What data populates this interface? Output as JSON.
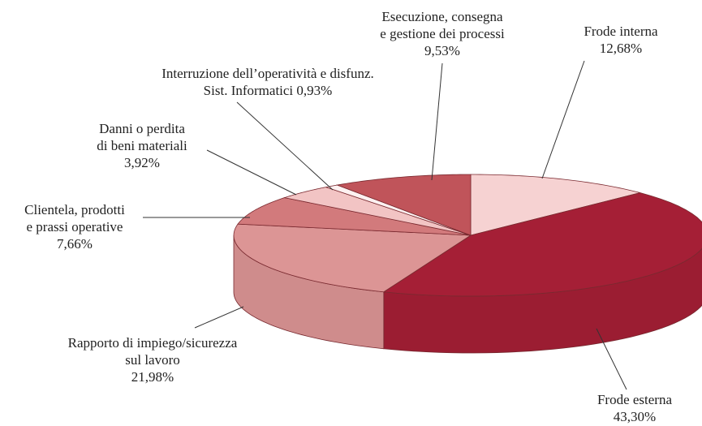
{
  "chart_data": {
    "type": "pie3d",
    "categories": [
      "Frode interna",
      "Frode esterna",
      "Rapporto di impiego/sicurezza\nsul lavoro",
      "Clientela, prodotti\ne prassi operative",
      "Danni o perdita\ndi beni materiali",
      "Interruzione dell’operatività e disfunz.\nSist. Informatici",
      "Esecuzione, consegna\ne gestione dei processi"
    ],
    "values": [
      12.68,
      43.3,
      21.98,
      7.66,
      3.92,
      0.93,
      9.53
    ],
    "value_labels": [
      "12,68%",
      "43,30%",
      "21,98%",
      "7,66%",
      "3,92%",
      "0,93%",
      "9,53%"
    ],
    "colors": [
      "#f6d2d2",
      "#a51f36",
      "#dc9595",
      "#d27a7c",
      "#f2c4c4",
      "#fdf1f1",
      "#c0545a"
    ]
  }
}
